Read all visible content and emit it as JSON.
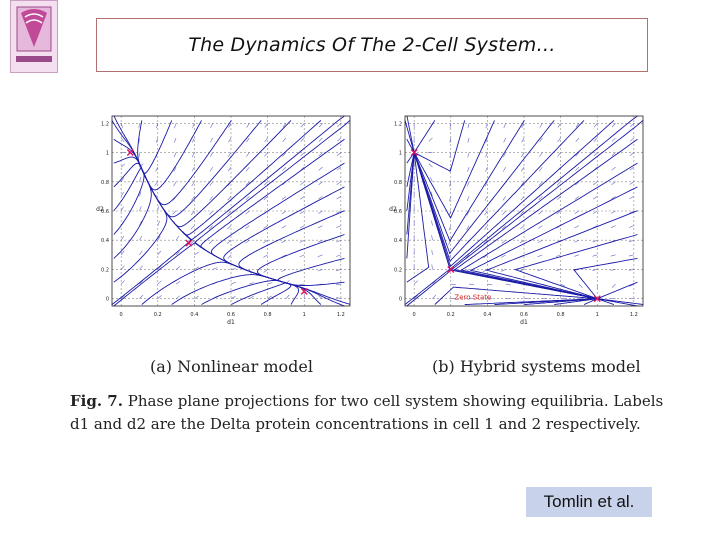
{
  "slide": {
    "title": "The Dynamics Of The 2-Cell System…",
    "credit": "Tomlin et al."
  },
  "figure": {
    "fig_label": "Fig. 7.",
    "caption": "Phase plane projections for two cell system showing equilibria. Labels d1 and d2 are the Delta protein concentrations in cell 1 and 2 respectively.",
    "panel_a_caption": "(a) Nonlinear model",
    "panel_b_caption": "(b) Hybrid systems model",
    "zero_state_label": "Zero State",
    "xlabel": "d1",
    "ylabel": "d2"
  },
  "colors": {
    "trajectory": "#1a1aa8",
    "equilibrium": "#e01060",
    "grid": "#888888",
    "zero_state": "#d02020"
  },
  "chart_data": [
    {
      "type": "line",
      "name": "(a) Nonlinear model",
      "xlim": [
        -0.05,
        1.25
      ],
      "ylim": [
        -0.05,
        1.25
      ],
      "xticks": [
        0,
        0.2,
        0.4,
        0.6,
        0.8,
        1,
        1.2
      ],
      "yticks": [
        0,
        0.2,
        0.4,
        0.6,
        0.8,
        1,
        1.2
      ],
      "xlabel": "d1",
      "ylabel": "d2",
      "grid": true,
      "equilibria": [
        {
          "x": 0.05,
          "y": 1.0
        },
        {
          "x": 0.37,
          "y": 0.38
        },
        {
          "x": 1.0,
          "y": 0.05
        }
      ]
    },
    {
      "type": "line",
      "name": "(b) Hybrid systems model",
      "xlim": [
        -0.05,
        1.25
      ],
      "ylim": [
        -0.05,
        1.25
      ],
      "xticks": [
        0,
        0.2,
        0.4,
        0.6,
        0.8,
        1,
        1.2
      ],
      "yticks": [
        0,
        0.2,
        0.4,
        0.6,
        0.8,
        1,
        1.2
      ],
      "xlabel": "d1",
      "ylabel": "d2",
      "grid": true,
      "equilibria": [
        {
          "x": 0.0,
          "y": 1.0
        },
        {
          "x": 0.2,
          "y": 0.2
        },
        {
          "x": 1.0,
          "y": 0.0
        }
      ],
      "annotation": "Zero State"
    }
  ]
}
